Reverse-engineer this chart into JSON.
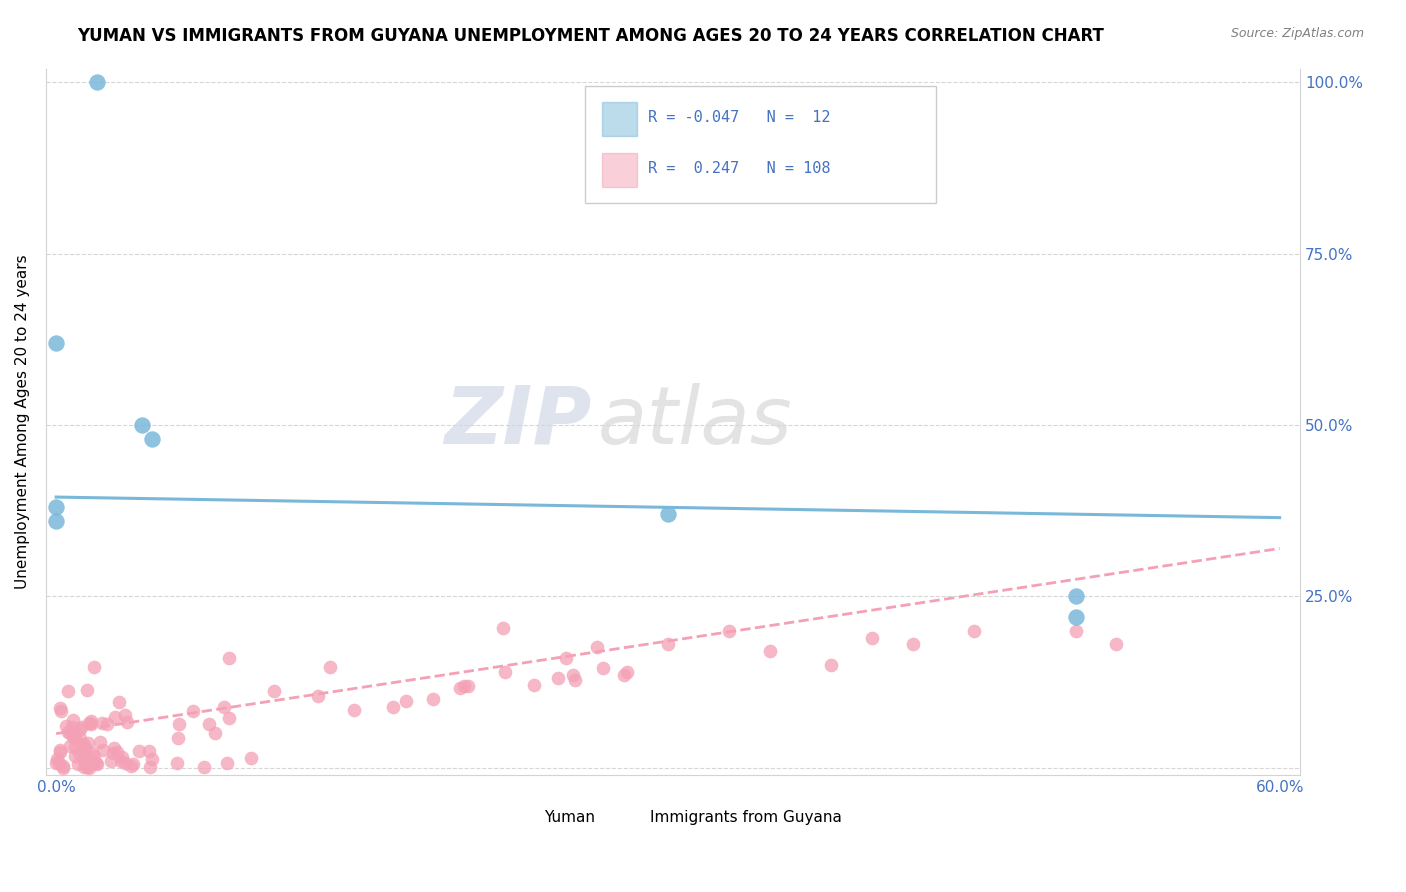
{
  "title": "YUMAN VS IMMIGRANTS FROM GUYANA UNEMPLOYMENT AMONG AGES 20 TO 24 YEARS CORRELATION CHART",
  "source_text": "Source: ZipAtlas.com",
  "ylabel": "Unemployment Among Ages 20 to 24 years",
  "xlim": [
    -0.005,
    0.61
  ],
  "ylim": [
    -0.01,
    1.02
  ],
  "xtick_positions": [
    0.0,
    0.1,
    0.2,
    0.3,
    0.4,
    0.5,
    0.6
  ],
  "xticklabels": [
    "0.0%",
    "",
    "",
    "",
    "",
    "",
    "60.0%"
  ],
  "ytick_positions": [
    0.0,
    0.25,
    0.5,
    0.75,
    1.0
  ],
  "yticklabels_right": [
    "",
    "25.0%",
    "50.0%",
    "75.0%",
    "100.0%"
  ],
  "yuman_color": "#7ab8d9",
  "guyana_color": "#f4a0b5",
  "yuman_R": -0.047,
  "yuman_N": 12,
  "guyana_R": 0.247,
  "guyana_N": 108,
  "watermark_zip": "ZIP",
  "watermark_atlas": "atlas",
  "legend_label1": "Yuman",
  "legend_label2": "Immigrants from Guyana",
  "yuman_x": [
    0.02,
    0.0,
    0.0,
    0.042,
    0.047,
    0.0,
    0.3,
    0.5,
    0.5
  ],
  "yuman_y": [
    1.0,
    0.62,
    0.38,
    0.5,
    0.48,
    0.36,
    0.37,
    0.25,
    0.22
  ],
  "yuman_line_x": [
    0.0,
    0.6
  ],
  "yuman_line_y": [
    0.395,
    0.365
  ],
  "guyana_line_x": [
    0.0,
    0.6
  ],
  "guyana_line_y": [
    0.05,
    0.32
  ],
  "tick_color": "#4472C4",
  "grid_color": "#cccccc",
  "title_fontsize": 12,
  "source_fontsize": 9,
  "ylabel_fontsize": 11,
  "tick_fontsize": 11
}
